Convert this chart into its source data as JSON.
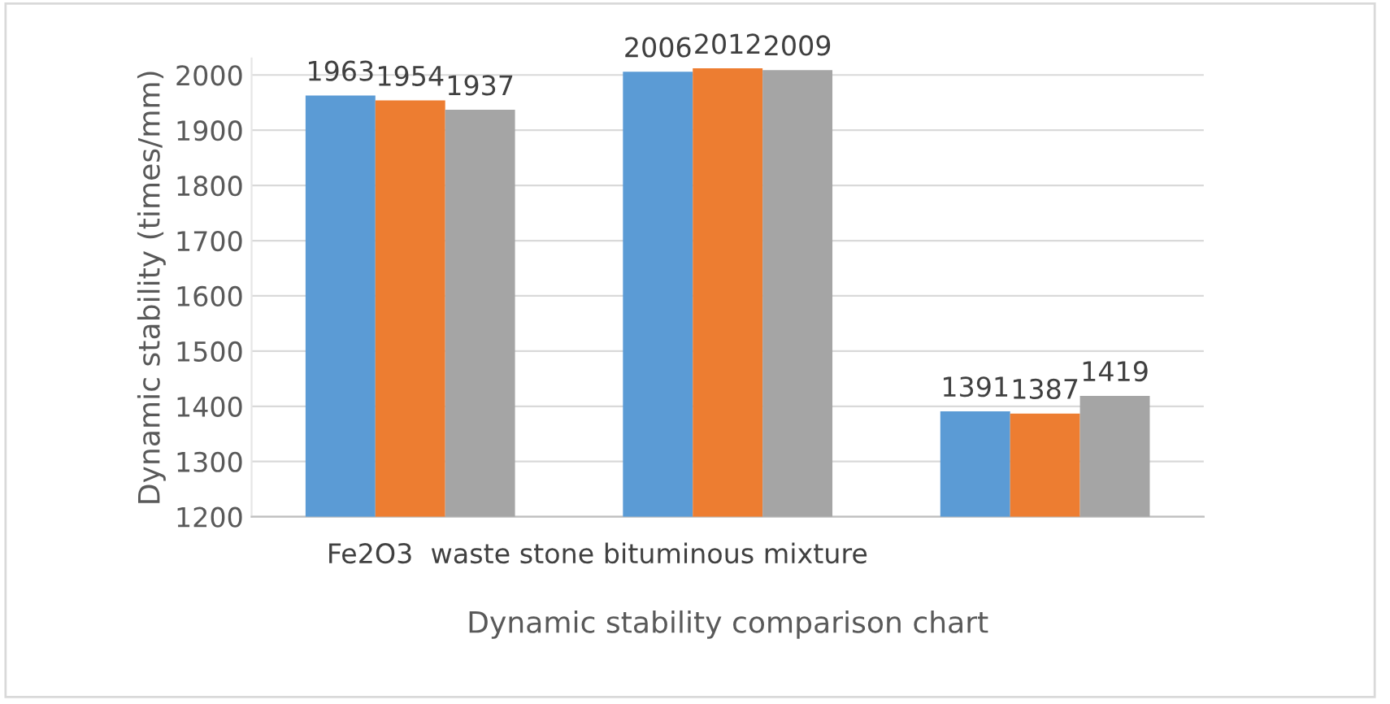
{
  "chart_data": {
    "type": "bar",
    "categories": [
      null,
      null,
      null
    ],
    "series": [
      {
        "color": "#5b9bd5",
        "values": [
          1963,
          2006,
          1391
        ]
      },
      {
        "color": "#ed7d31",
        "values": [
          1954,
          2012,
          1387
        ]
      },
      {
        "color": "#a5a5a5",
        "values": [
          1937,
          2009,
          1419
        ]
      }
    ],
    "ylabel": "Dynamic stability (times/mm)",
    "xlabel": "Dynamic stability comparison chart",
    "annotations": [
      "Fe2O3  waste stone bituminous mixture"
    ],
    "ylim": [
      1200,
      2030
    ],
    "yticks": [
      1200,
      1300,
      1400,
      1500,
      1600,
      1700,
      1800,
      1900,
      2000
    ],
    "grid": "y",
    "data_labels": true
  }
}
